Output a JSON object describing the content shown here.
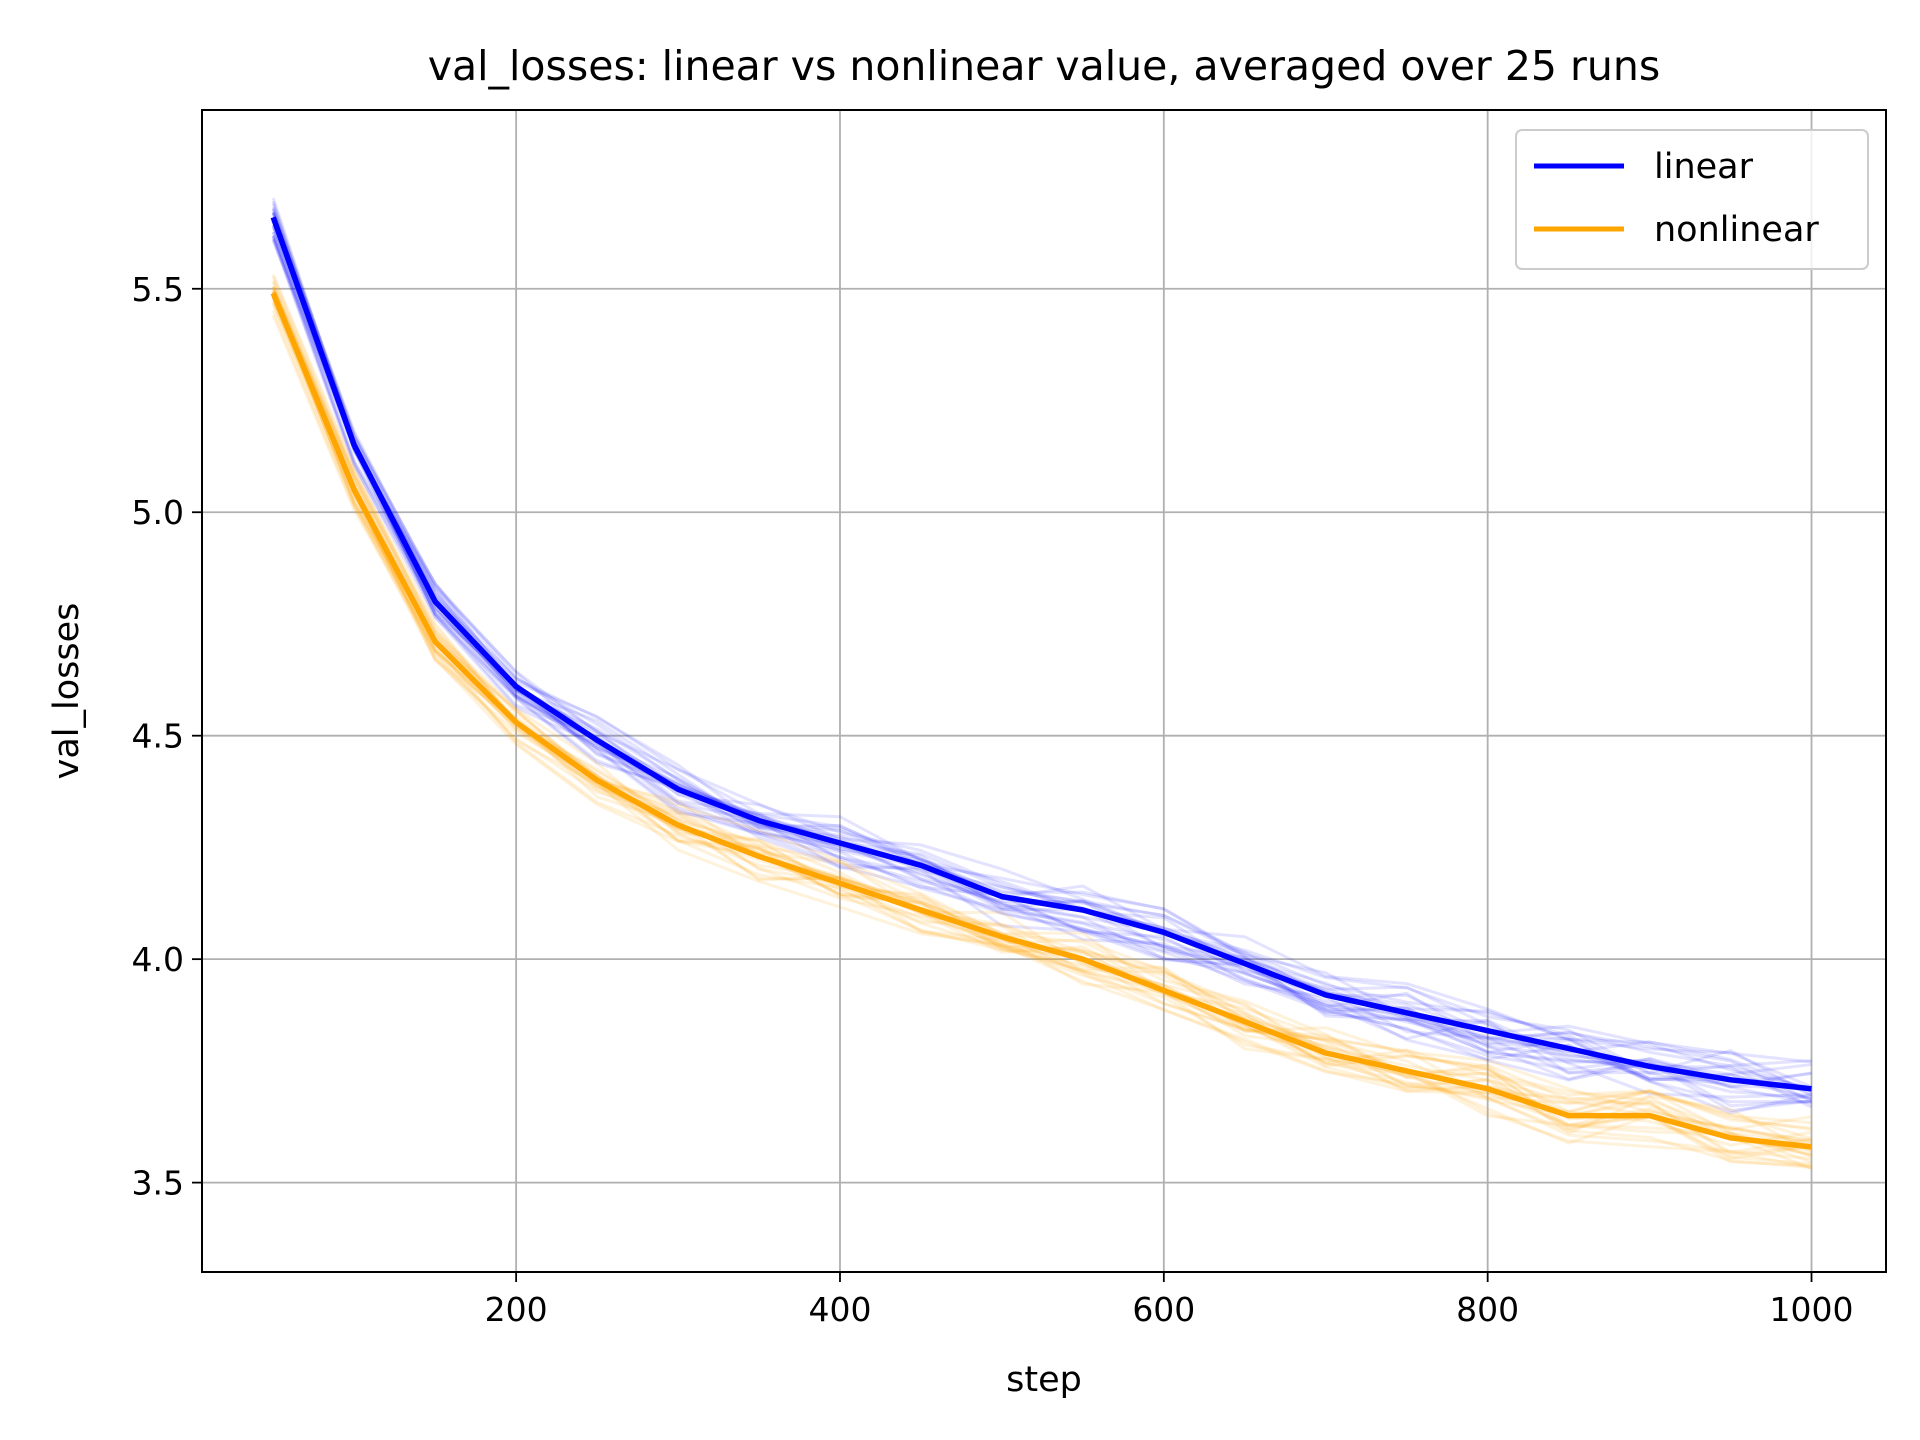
{
  "chart_data": {
    "type": "line",
    "title": "val_losses: linear vs nonlinear value, averaged over 25 runs",
    "xlabel": "step",
    "ylabel": "val_losses",
    "xlim": [
      6,
      1046
    ],
    "ylim": [
      3.3,
      5.9
    ],
    "xticks": [
      200,
      400,
      600,
      800,
      1000
    ],
    "xtick_labels": [
      "200",
      "400",
      "600",
      "800",
      "1000"
    ],
    "yticks": [
      3.5,
      4.0,
      4.5,
      5.0,
      5.5
    ],
    "ytick_labels": [
      "3.5",
      "4.0",
      "4.5",
      "5.0",
      "5.5"
    ],
    "grid": true,
    "legend_position": "top-right",
    "x": [
      50,
      100,
      150,
      200,
      250,
      300,
      350,
      400,
      450,
      500,
      550,
      600,
      650,
      700,
      750,
      800,
      850,
      900,
      950,
      1000
    ],
    "series": [
      {
        "name": "linear",
        "color": "#0000ff",
        "values": [
          5.66,
          5.15,
          4.8,
          4.61,
          4.49,
          4.38,
          4.31,
          4.26,
          4.21,
          4.14,
          4.11,
          4.06,
          3.99,
          3.92,
          3.88,
          3.84,
          3.8,
          3.76,
          3.73,
          3.71
        ]
      },
      {
        "name": "nonlinear",
        "color": "#ffa500",
        "values": [
          5.49,
          5.05,
          4.71,
          4.53,
          4.4,
          4.3,
          4.23,
          4.17,
          4.11,
          4.05,
          4.0,
          3.93,
          3.86,
          3.79,
          3.75,
          3.71,
          3.65,
          3.65,
          3.6,
          3.58
        ]
      }
    ],
    "individual_runs_per_series": 25
  }
}
